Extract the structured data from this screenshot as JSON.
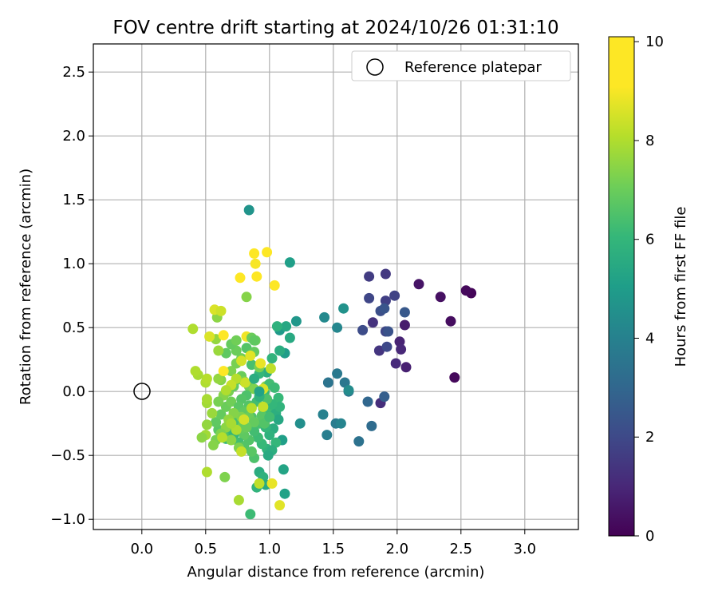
{
  "chart_data": {
    "type": "scatter",
    "title": "FOV centre drift starting at 2024/10/26 01:31:10",
    "xlabel": "Angular distance from reference (arcmin)",
    "ylabel": "Rotation from reference (arcmin)",
    "xlim": [
      -0.38,
      3.42
    ],
    "ylim": [
      -1.08,
      2.72
    ],
    "xticks": [
      "0.0",
      "0.5",
      "1.0",
      "1.5",
      "2.0",
      "2.5",
      "3.0"
    ],
    "xtick_values": [
      0,
      0.5,
      1,
      1.5,
      2,
      2.5,
      3
    ],
    "yticks": [
      "-1.0",
      "-0.5",
      "0.0",
      "0.5",
      "1.0",
      "1.5",
      "2.0",
      "2.5"
    ],
    "ytick_values": [
      -1,
      -0.5,
      0,
      0.5,
      1,
      1.5,
      2,
      2.5
    ],
    "grid": true,
    "legend": {
      "placement": "top-right",
      "entries": [
        "Reference platepar"
      ]
    },
    "reference_point": {
      "x": 0.0,
      "y": 0.0,
      "label": "Reference platepar"
    },
    "colorbar": {
      "label": "Hours from first FF file",
      "min": 0,
      "max": 10.1,
      "ticks": [
        "0",
        "2",
        "4",
        "6",
        "8",
        "10"
      ],
      "tick_values": [
        0,
        2,
        4,
        6,
        8,
        10
      ],
      "colormap": "viridis"
    },
    "series": [
      {
        "points": [
          [
            2.58,
            0.77,
            0.1
          ],
          [
            2.54,
            0.79,
            0.2
          ],
          [
            2.45,
            0.11,
            0.2
          ],
          [
            2.42,
            0.55,
            0.3
          ],
          [
            2.34,
            0.74,
            0.4
          ],
          [
            2.17,
            0.84,
            0.5
          ],
          [
            2.06,
            0.52,
            0.7
          ],
          [
            2.07,
            0.19,
            0.8
          ],
          [
            2.02,
            0.39,
            0.9
          ],
          [
            2.03,
            0.33,
            1.0
          ],
          [
            1.99,
            0.22,
            1.1
          ],
          [
            1.87,
            -0.09,
            1.2
          ],
          [
            1.81,
            0.54,
            1.3
          ],
          [
            1.86,
            0.32,
            1.4
          ],
          [
            1.91,
            0.92,
            1.5
          ],
          [
            1.78,
            0.9,
            1.6
          ],
          [
            1.91,
            0.71,
            1.7
          ],
          [
            1.98,
            0.75,
            1.8
          ],
          [
            1.91,
            0.47,
            1.9
          ],
          [
            1.92,
            0.35,
            2.0
          ],
          [
            1.73,
            0.48,
            2.1
          ],
          [
            1.87,
            0.63,
            2.2
          ],
          [
            1.93,
            0.47,
            2.3
          ],
          [
            2.06,
            0.62,
            2.5
          ],
          [
            1.9,
            -0.04,
            2.7
          ],
          [
            1.78,
            0.73,
            1.9
          ],
          [
            1.9,
            0.65,
            2.4
          ],
          [
            1.77,
            -0.08,
            3.0
          ],
          [
            1.8,
            -0.27,
            3.2
          ],
          [
            1.7,
            -0.39,
            3.4
          ],
          [
            1.62,
            0.0,
            3.4
          ],
          [
            1.59,
            0.07,
            3.6
          ],
          [
            1.53,
            0.14,
            3.7
          ],
          [
            1.52,
            -0.25,
            3.8
          ],
          [
            1.45,
            -0.34,
            3.9
          ],
          [
            1.46,
            0.07,
            3.5
          ],
          [
            1.42,
            -0.18,
            4.0
          ],
          [
            1.56,
            -0.25,
            4.1
          ],
          [
            1.53,
            0.5,
            4.2
          ],
          [
            1.43,
            0.58,
            4.3
          ],
          [
            1.58,
            0.65,
            4.6
          ],
          [
            1.62,
            0.01,
            4.4
          ],
          [
            1.24,
            -0.25,
            4.5
          ],
          [
            0.84,
            1.42,
            4.7
          ],
          [
            1.21,
            0.55,
            4.8
          ],
          [
            1.16,
            1.01,
            5.1
          ],
          [
            1.08,
            0.48,
            4.9
          ],
          [
            1.12,
            0.3,
            5.0
          ],
          [
            1.1,
            -0.38,
            5.1
          ],
          [
            1.12,
            -0.8,
            5.2
          ],
          [
            1.11,
            -0.61,
            5.3
          ],
          [
            1.13,
            0.51,
            5.4
          ],
          [
            1.16,
            0.42,
            5.5
          ],
          [
            1.08,
            0.32,
            5.6
          ],
          [
            1.06,
            0.51,
            5.8
          ],
          [
            0.98,
            0.15,
            5.7
          ],
          [
            1.02,
            0.26,
            5.9
          ],
          [
            0.92,
            0.14,
            6.0
          ],
          [
            0.96,
            0.0,
            6.1
          ],
          [
            0.93,
            -0.03,
            5.9
          ],
          [
            1.0,
            -0.16,
            6.2
          ],
          [
            1.05,
            -0.17,
            5.7
          ],
          [
            1.07,
            -0.22,
            5.4
          ],
          [
            1.03,
            -0.29,
            5.6
          ],
          [
            1.0,
            -0.34,
            5.8
          ],
          [
            1.05,
            -0.4,
            6.0
          ],
          [
            0.98,
            -0.45,
            5.9
          ],
          [
            1.02,
            -0.46,
            5.7
          ],
          [
            0.94,
            -0.41,
            6.1
          ],
          [
            0.91,
            -0.36,
            6.2
          ],
          [
            0.88,
            -0.31,
            6.3
          ],
          [
            0.92,
            -0.25,
            6.4
          ],
          [
            0.86,
            -0.2,
            6.5
          ],
          [
            0.84,
            -0.11,
            6.6
          ],
          [
            0.9,
            -0.08,
            6.3
          ],
          [
            0.95,
            -0.13,
            6.2
          ],
          [
            0.97,
            -0.28,
            6.0
          ],
          [
            0.99,
            -0.5,
            5.5
          ],
          [
            0.92,
            -0.63,
            5.6
          ],
          [
            0.95,
            -0.67,
            5.8
          ],
          [
            0.97,
            -0.73,
            5.5
          ],
          [
            0.9,
            -0.75,
            5.9
          ],
          [
            0.85,
            -0.96,
            6.2
          ],
          [
            0.88,
            -0.52,
            6.5
          ],
          [
            0.86,
            -0.47,
            6.7
          ],
          [
            0.84,
            -0.38,
            6.6
          ],
          [
            0.8,
            -0.34,
            6.8
          ],
          [
            0.78,
            -0.29,
            6.9
          ],
          [
            0.74,
            -0.27,
            7.0
          ],
          [
            0.72,
            -0.23,
            6.4
          ],
          [
            0.7,
            -0.31,
            6.2
          ],
          [
            0.72,
            -0.34,
            6.0
          ],
          [
            0.76,
            -0.4,
            6.3
          ],
          [
            0.8,
            -0.43,
            6.6
          ],
          [
            0.66,
            -0.37,
            6.1
          ],
          [
            0.64,
            -0.34,
            6.5
          ],
          [
            0.6,
            -0.3,
            6.7
          ],
          [
            0.58,
            -0.24,
            6.8
          ],
          [
            0.62,
            -0.18,
            6.9
          ],
          [
            0.66,
            -0.12,
            7.0
          ],
          [
            0.7,
            -0.08,
            7.1
          ],
          [
            0.68,
            0.0,
            7.2
          ],
          [
            0.72,
            0.04,
            6.9
          ],
          [
            0.74,
            0.09,
            6.8
          ],
          [
            0.78,
            0.12,
            7.0
          ],
          [
            0.8,
            0.08,
            7.2
          ],
          [
            0.84,
            0.04,
            7.1
          ],
          [
            0.88,
            0.02,
            7.3
          ],
          [
            0.82,
            -0.03,
            6.5
          ],
          [
            0.78,
            -0.06,
            6.6
          ],
          [
            0.76,
            -0.12,
            6.7
          ],
          [
            0.8,
            -0.16,
            6.8
          ],
          [
            0.84,
            -0.2,
            7.0
          ],
          [
            0.88,
            -0.24,
            6.9
          ],
          [
            0.62,
            0.09,
            7.4
          ],
          [
            0.7,
            0.16,
            7.3
          ],
          [
            0.74,
            0.22,
            7.2
          ],
          [
            0.78,
            0.26,
            7.1
          ],
          [
            0.74,
            0.32,
            7.0
          ],
          [
            0.7,
            0.37,
            6.9
          ],
          [
            0.66,
            0.3,
            6.8
          ],
          [
            0.74,
            0.4,
            7.1
          ],
          [
            0.82,
            0.34,
            6.6
          ],
          [
            0.86,
            0.21,
            6.4
          ],
          [
            0.88,
            0.31,
            6.9
          ],
          [
            0.89,
            0.4,
            7.0
          ],
          [
            0.92,
            0.19,
            7.2
          ],
          [
            0.97,
            0.04,
            7.4
          ],
          [
            1.0,
            0.06,
            6.3
          ],
          [
            1.04,
            0.03,
            6.2
          ],
          [
            1.07,
            -0.05,
            6.1
          ],
          [
            1.08,
            -0.12,
            5.9
          ],
          [
            1.02,
            -0.1,
            6.0
          ],
          [
            0.98,
            -0.06,
            6.5
          ],
          [
            0.94,
            -0.19,
            6.7
          ],
          [
            0.96,
            -0.25,
            6.6
          ],
          [
            1.0,
            -0.2,
            6.3
          ],
          [
            0.82,
            -0.28,
            7.0
          ],
          [
            0.78,
            -0.2,
            7.3
          ],
          [
            0.72,
            -0.17,
            7.4
          ],
          [
            0.66,
            -0.28,
            7.5
          ],
          [
            0.62,
            -0.33,
            7.3
          ],
          [
            0.58,
            -0.38,
            7.2
          ],
          [
            0.56,
            -0.42,
            7.4
          ],
          [
            0.51,
            -0.26,
            7.6
          ],
          [
            0.5,
            -0.34,
            7.8
          ],
          [
            0.47,
            -0.36,
            7.5
          ],
          [
            0.55,
            -0.17,
            7.7
          ],
          [
            0.51,
            -0.09,
            7.8
          ],
          [
            0.51,
            -0.06,
            7.9
          ],
          [
            0.5,
            0.07,
            8.0
          ],
          [
            0.51,
            0.1,
            8.1
          ],
          [
            0.44,
            0.13,
            7.9
          ],
          [
            0.42,
            0.16,
            8.0
          ],
          [
            0.6,
            0.1,
            7.6
          ],
          [
            0.64,
            -0.03,
            7.4
          ],
          [
            0.6,
            -0.08,
            7.2
          ],
          [
            0.68,
            -0.22,
            7.6
          ],
          [
            0.7,
            -0.38,
            7.5
          ],
          [
            0.76,
            -0.44,
            7.3
          ],
          [
            0.78,
            -0.47,
            8.3
          ],
          [
            0.63,
            -0.36,
            8.1
          ],
          [
            0.65,
            -0.67,
            7.3
          ],
          [
            0.51,
            -0.63,
            8.0
          ],
          [
            0.76,
            -0.85,
            7.9
          ],
          [
            0.92,
            -0.72,
            8.2
          ],
          [
            1.02,
            -0.72,
            8.8
          ],
          [
            1.08,
            -0.89,
            8.7
          ],
          [
            0.6,
            0.32,
            7.7
          ],
          [
            0.58,
            0.41,
            7.6
          ],
          [
            0.59,
            0.58,
            7.5
          ],
          [
            0.57,
            0.64,
            8.6
          ],
          [
            0.62,
            0.63,
            8.4
          ],
          [
            0.4,
            0.49,
            8.0
          ],
          [
            0.53,
            0.43,
            8.6
          ],
          [
            0.64,
            0.44,
            9.7
          ],
          [
            0.64,
            0.16,
            9.2
          ],
          [
            0.82,
            0.43,
            8.9
          ],
          [
            0.86,
            0.42,
            7.0
          ],
          [
            0.88,
            0.4,
            6.8
          ],
          [
            0.82,
            0.74,
            7.4
          ],
          [
            0.77,
            0.89,
            9.3
          ],
          [
            0.89,
            1.0,
            9.0
          ],
          [
            0.88,
            1.08,
            9.2
          ],
          [
            0.9,
            0.9,
            9.6
          ],
          [
            0.98,
            1.09,
            10.0
          ],
          [
            1.04,
            0.83,
            9.4
          ],
          [
            0.95,
            0.02,
            8.6
          ],
          [
            1.01,
            0.18,
            8.2
          ],
          [
            0.81,
            0.07,
            8.4
          ],
          [
            0.78,
            0.24,
            8.5
          ],
          [
            0.85,
            0.28,
            8.7
          ],
          [
            0.93,
            0.22,
            8.8
          ],
          [
            0.95,
            -0.12,
            8.3
          ],
          [
            0.86,
            -0.13,
            8.1
          ],
          [
            0.8,
            -0.22,
            8.5
          ],
          [
            0.74,
            -0.3,
            8.0
          ],
          [
            0.7,
            -0.25,
            7.9
          ],
          [
            0.74,
            0.1,
            8.1
          ],
          [
            0.7,
            0.05,
            8.3
          ],
          [
            0.66,
            0.01,
            8.0
          ],
          [
            0.92,
            -0.04,
            5.8
          ],
          [
            0.92,
            0.0,
            5.2
          ],
          [
            0.88,
            0.1,
            5.6
          ]
        ]
      }
    ]
  }
}
